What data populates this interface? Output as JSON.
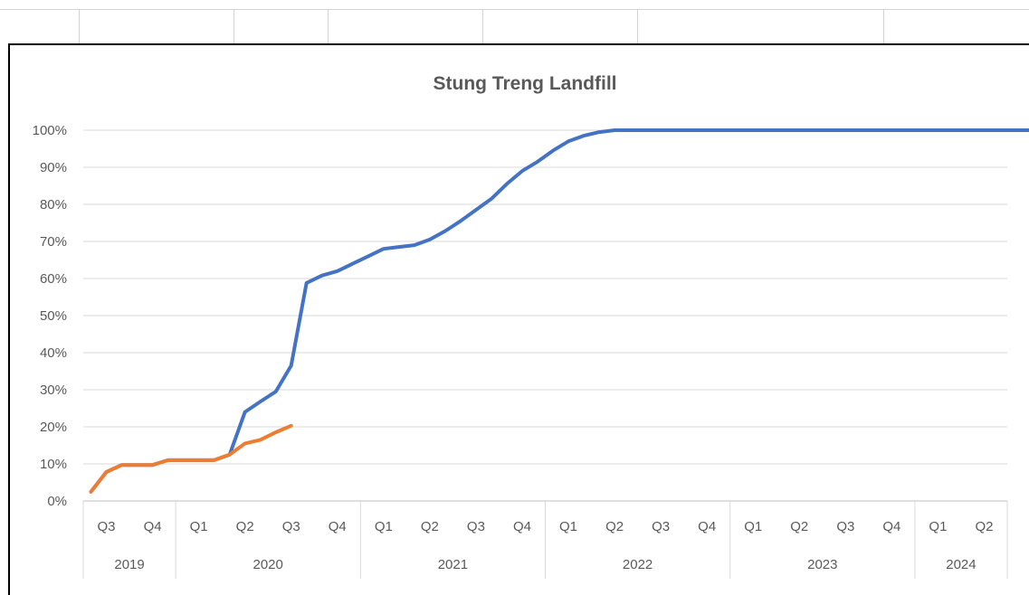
{
  "chart_data": {
    "type": "line",
    "title": "Stung Treng  Landfill",
    "xlabel": "",
    "ylabel": "",
    "ylim": [
      0,
      100
    ],
    "y_tick_labels": [
      "0%",
      "10%",
      "20%",
      "30%",
      "40%",
      "50%",
      "60%",
      "70%",
      "80%",
      "90%",
      "100%"
    ],
    "quarters": [
      "Q3",
      "Q4",
      "Q1",
      "Q2",
      "Q3",
      "Q4",
      "Q1",
      "Q2",
      "Q3",
      "Q4",
      "Q1",
      "Q2",
      "Q3",
      "Q4",
      "Q1",
      "Q2",
      "Q3",
      "Q4",
      "Q1",
      "Q2"
    ],
    "years": [
      {
        "label": "2019",
        "quarter_count": 2
      },
      {
        "label": "2020",
        "quarter_count": 4
      },
      {
        "label": "2021",
        "quarter_count": 4
      },
      {
        "label": "2022",
        "quarter_count": 4
      },
      {
        "label": "2023",
        "quarter_count": 4
      },
      {
        "label": "2024",
        "quarter_count": 2
      }
    ],
    "x_unit": "month",
    "x_start": "2019-07",
    "grid": true,
    "legend": "none",
    "series": [
      {
        "color": "#4472C4",
        "x": [
          0,
          1,
          2,
          3,
          4,
          5,
          6,
          7,
          8,
          9,
          10,
          11,
          12,
          13,
          14,
          15,
          16,
          17,
          18,
          19,
          20,
          21,
          22,
          23,
          24,
          25,
          26,
          27,
          28,
          29,
          30,
          31,
          32,
          33,
          34,
          35,
          36,
          37,
          38,
          39,
          40,
          41,
          42,
          43,
          44,
          45,
          46,
          47,
          48,
          49,
          50,
          51,
          52,
          53,
          54,
          55,
          56,
          57,
          58,
          59,
          60,
          61
        ],
        "values": [
          2.5,
          7.8,
          9.7,
          9.7,
          9.7,
          11,
          11,
          11,
          11,
          12.5,
          24,
          26.8,
          29.5,
          36.5,
          58.8,
          60.8,
          62,
          64,
          66,
          68,
          68.5,
          69,
          70.5,
          72.8,
          75.5,
          78.5,
          81.5,
          85.5,
          89,
          91.5,
          94.5,
          97,
          98.5,
          99.5,
          100,
          100,
          100,
          100,
          100,
          100,
          100,
          100,
          100,
          100,
          100,
          100,
          100,
          100,
          100,
          100,
          100,
          100,
          100,
          100,
          100,
          100,
          100,
          100,
          100,
          100,
          100,
          100
        ]
      },
      {
        "color": "#ED7D31",
        "x": [
          0,
          1,
          2,
          3,
          4,
          5,
          6,
          7,
          8,
          9,
          10,
          11,
          12,
          13
        ],
        "values": [
          2.5,
          7.8,
          9.7,
          9.7,
          9.7,
          11,
          11,
          11,
          11,
          12.5,
          15.5,
          16.5,
          18.5,
          20.3
        ]
      }
    ]
  }
}
